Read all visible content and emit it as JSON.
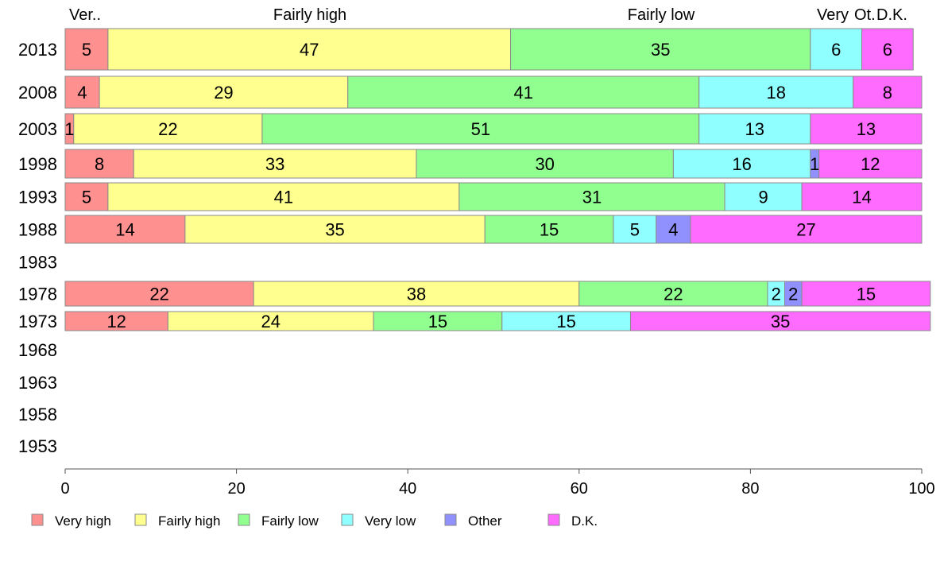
{
  "chart_data": {
    "type": "bar",
    "orientation": "horizontal",
    "stacked": true,
    "xlim": [
      0,
      100
    ],
    "x_ticks": [
      "0",
      "20",
      "40",
      "60",
      "80",
      "100"
    ],
    "top_labels": [
      "Ver..",
      "Fairly high",
      "Fairly low",
      "Very",
      "Ot.",
      "D.K."
    ],
    "categories": [
      "2013",
      "2008",
      "2003",
      "1998",
      "1993",
      "1988",
      "1983",
      "1978",
      "1973",
      "1968",
      "1963",
      "1958",
      "1953"
    ],
    "series": [
      {
        "name": "Very high",
        "color": "#ff9090",
        "values": [
          5,
          4,
          1,
          8,
          5,
          14,
          null,
          22,
          12,
          null,
          null,
          null,
          null
        ]
      },
      {
        "name": "Fairly high",
        "color": "#ffff90",
        "values": [
          47,
          29,
          22,
          33,
          41,
          35,
          null,
          38,
          24,
          null,
          null,
          null,
          null
        ]
      },
      {
        "name": "Fairly low",
        "color": "#90ff90",
        "values": [
          35,
          41,
          51,
          30,
          31,
          15,
          null,
          22,
          15,
          null,
          null,
          null,
          null
        ]
      },
      {
        "name": "Very low",
        "color": "#90ffff",
        "values": [
          6,
          18,
          13,
          16,
          9,
          5,
          null,
          2,
          15,
          null,
          null,
          null,
          null
        ]
      },
      {
        "name": "Other",
        "color": "#9090ff",
        "values": [
          0,
          0,
          0,
          1,
          0,
          4,
          null,
          2,
          0,
          null,
          null,
          null,
          null
        ]
      },
      {
        "name": "D.K.",
        "color": "#ff6aff",
        "values": [
          6,
          8,
          13,
          12,
          14,
          27,
          null,
          15,
          35,
          null,
          null,
          null,
          null
        ]
      }
    ],
    "grid": false,
    "legend_position": "bottom"
  }
}
